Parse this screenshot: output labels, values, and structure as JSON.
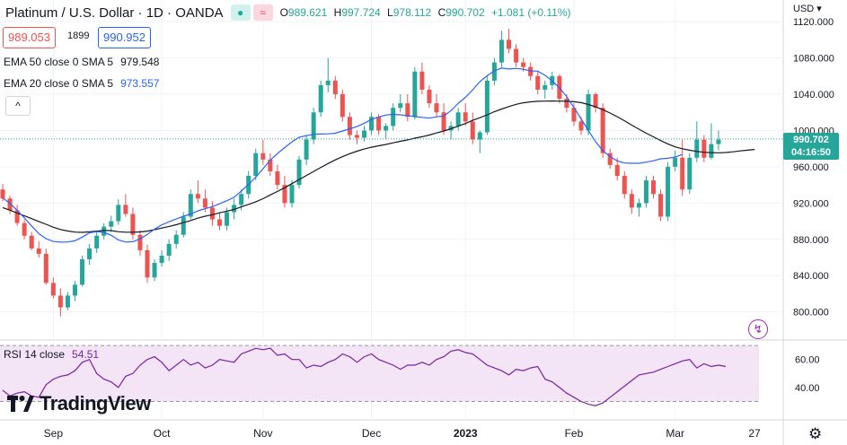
{
  "header": {
    "title": "Platinum / U.S. Dollar · 1D · OANDA",
    "ohlc": {
      "o_label": "O",
      "o": "989.621",
      "h_label": "H",
      "h": "997.724",
      "l_label": "L",
      "l": "978.112",
      "c_label": "C",
      "c": "990.702",
      "change": "+1.081 (+0.11%)"
    },
    "bid": "989.053",
    "spread": "1899",
    "ask": "990.952"
  },
  "indicators": {
    "ema50": {
      "label": "EMA 50 close 0 SMA 5",
      "value": "979.548"
    },
    "ema20": {
      "label": "EMA 20 close 0 SMA 5",
      "value": "973.557"
    },
    "collapse": "^"
  },
  "axis": {
    "currency": "USD",
    "last_price": "990.702",
    "countdown": "04:16:50",
    "price_ticks": [
      "1120.000",
      "1080.000",
      "1040.000",
      "1000.000",
      "960.000",
      "920.000",
      "880.000",
      "840.000",
      "800.000"
    ],
    "rsi_ticks": [
      "60.00",
      "40.00"
    ],
    "time_labels": [
      "Sep",
      "Oct",
      "Nov",
      "Dec",
      "2023",
      "Feb",
      "Mar",
      "27"
    ]
  },
  "rsi": {
    "label": "RSI 14 close",
    "value": "54.51"
  },
  "branding": "TradingView",
  "colors": {
    "up": "#26a69a",
    "down": "#ef5350",
    "ema20": "#2962ff",
    "ema50": "#131722",
    "rsi": "#7b1fa2",
    "rsi_band": "#f3e5f5"
  },
  "chart_data": {
    "type": "candlestick",
    "price_range": [
      770,
      1132
    ],
    "rsi_range": [
      22,
      72
    ],
    "rsi_bands": [
      70,
      30
    ],
    "series": [
      {
        "name": "EMA 50 close 0 SMA 5",
        "values": [
          915.0,
          912.1,
          909.0,
          905.9,
          902.8,
          899.7,
          896.6,
          893.3,
          890.9,
          889.2,
          888.0,
          887.7,
          888.3,
          889.1,
          889.9,
          889.7,
          888.4,
          887.9,
          887.9,
          888.2,
          889.1,
          890.7,
          892.4,
          894.2,
          896.1,
          898.5,
          900.8,
          903.4,
          905.5,
          907.2,
          909.3,
          911.1,
          913.0,
          915.8,
          918.6,
          921.4,
          924.8,
          928.9,
          932.8,
          937.0,
          941.4,
          946.0,
          950.4,
          954.9,
          959.3,
          963.6,
          967.6,
          971.2,
          974.4,
          977.2,
          979.6,
          981.6,
          983.1,
          984.6,
          986.4,
          988.1,
          989.7,
          991.6,
          993.1,
          995.0,
          997.3,
          999.5,
          1002.0,
          1004.8,
          1007.7,
          1011.2,
          1014.1,
          1017.3,
          1020.7,
          1023.7,
          1026.4,
          1028.8,
          1030.5,
          1031.6,
          1032.2,
          1032.4,
          1032.5,
          1032.4,
          1032.2,
          1031.7,
          1030.7,
          1028.6,
          1026.1,
          1022.9,
          1019.2,
          1015.2,
          1010.7,
          1005.9,
          1001.4,
          997.0,
          993.0,
          988.9,
          985.2,
          982.0,
          979.9,
          978.3,
          976.9,
          976.0,
          975.6,
          975.4,
          975.7,
          976.5,
          977.5,
          978.3,
          979.1
        ]
      },
      {
        "name": "EMA 20 close 0 SMA 5",
        "values": [
          925.6,
          919.7,
          912.0,
          903.6,
          894.8,
          886.2,
          880.8,
          877.6,
          876.9,
          877.1,
          878.4,
          882.5,
          887.2,
          888.6,
          887.8,
          884.5,
          879.4,
          877.0,
          877.4,
          880.5,
          885.4,
          891.3,
          896.0,
          899.4,
          902.4,
          905.5,
          908.0,
          911.4,
          913.8,
          916.1,
          919.3,
          922.6,
          926.4,
          933.3,
          940.6,
          948.6,
          957.8,
          967.4,
          974.5,
          981.3,
          987.5,
          992.5,
          994.3,
          995.8,
          996.1,
          996.3,
          997.0,
          999.5,
          1001.9,
          1004.3,
          1008.0,
          1012.2,
          1014.8,
          1017.1,
          1017.8,
          1017.3,
          1016.5,
          1015.3,
          1014.5,
          1013.6,
          1015.1,
          1016.0,
          1021.9,
          1030.0,
          1036.6,
          1045.0,
          1053.9,
          1060.4,
          1065.7,
          1068.9,
          1067.8,
          1068.5,
          1067.5,
          1065.7,
          1065.4,
          1060.9,
          1054.6,
          1047.1,
          1037.2,
          1025.4,
          1012.8,
          999.9,
          987.7,
          977.8,
          971.2,
          966.5,
          964.2,
          963.9,
          963.9,
          965.1,
          966.6,
          968.8,
          969.4,
          970.7,
          973.6
        ]
      },
      {
        "name": "RSI 14 close",
        "values": [
          38,
          34,
          36,
          37,
          34,
          33,
          42,
          46,
          48,
          49,
          52,
          58,
          60,
          50,
          46,
          44,
          40,
          48,
          50,
          56,
          60,
          62,
          58,
          52,
          56,
          60,
          56,
          58,
          54,
          56,
          60,
          59,
          58,
          64,
          66,
          68,
          67,
          68,
          63,
          64,
          60,
          60,
          54,
          56,
          55,
          58,
          60,
          64,
          62,
          58,
          62,
          64,
          60,
          58,
          56,
          53,
          56,
          56,
          58,
          56,
          60,
          62,
          66,
          67,
          65,
          64,
          60,
          56,
          54,
          52,
          49,
          53,
          52,
          54,
          55,
          46,
          44,
          40,
          36,
          33,
          30,
          28,
          27,
          29,
          33,
          37,
          41,
          45,
          49,
          50,
          51,
          53,
          55,
          57,
          59,
          60,
          54,
          57,
          55,
          56,
          55
        ]
      }
    ],
    "ohlc": [
      [
        935,
        941,
        922,
        925
      ],
      [
        925,
        928,
        908,
        912
      ],
      [
        912,
        918,
        895,
        898
      ],
      [
        898,
        902,
        880,
        884
      ],
      [
        884,
        888,
        868,
        870
      ],
      [
        870,
        878,
        860,
        864
      ],
      [
        864,
        870,
        830,
        832
      ],
      [
        832,
        838,
        815,
        818
      ],
      [
        818,
        826,
        795,
        805
      ],
      [
        805,
        822,
        802,
        818
      ],
      [
        818,
        834,
        812,
        830
      ],
      [
        830,
        862,
        828,
        858
      ],
      [
        858,
        875,
        852,
        870
      ],
      [
        870,
        888,
        865,
        884
      ],
      [
        884,
        898,
        880,
        894
      ],
      [
        894,
        906,
        888,
        900
      ],
      [
        900,
        924,
        896,
        918
      ],
      [
        918,
        930,
        905,
        908
      ],
      [
        908,
        915,
        880,
        885
      ],
      [
        885,
        890,
        862,
        868
      ],
      [
        868,
        874,
        832,
        838
      ],
      [
        838,
        858,
        834,
        854
      ],
      [
        854,
        868,
        850,
        862
      ],
      [
        862,
        880,
        856,
        875
      ],
      [
        875,
        890,
        870,
        885
      ],
      [
        885,
        910,
        882,
        905
      ],
      [
        905,
        935,
        902,
        930
      ],
      [
        930,
        945,
        920,
        925
      ],
      [
        925,
        935,
        910,
        915
      ],
      [
        915,
        922,
        895,
        902
      ],
      [
        902,
        910,
        890,
        895
      ],
      [
        895,
        915,
        890,
        910
      ],
      [
        910,
        925,
        902,
        918
      ],
      [
        918,
        935,
        912,
        930
      ],
      [
        930,
        955,
        925,
        950
      ],
      [
        950,
        980,
        945,
        975
      ],
      [
        975,
        990,
        962,
        968
      ],
      [
        968,
        975,
        950,
        955
      ],
      [
        955,
        962,
        935,
        940
      ],
      [
        940,
        950,
        915,
        920
      ],
      [
        920,
        945,
        915,
        940
      ],
      [
        940,
        972,
        936,
        968
      ],
      [
        968,
        995,
        962,
        990
      ],
      [
        990,
        1025,
        985,
        1020
      ],
      [
        1020,
        1055,
        1015,
        1050
      ],
      [
        1050,
        1080,
        1042,
        1055
      ],
      [
        1055,
        1060,
        1035,
        1040
      ],
      [
        1040,
        1045,
        1010,
        1015
      ],
      [
        1015,
        1020,
        990,
        995
      ],
      [
        995,
        1000,
        985,
        992
      ],
      [
        992,
        1005,
        988,
        1000
      ],
      [
        1000,
        1020,
        995,
        1015
      ],
      [
        1015,
        1018,
        995,
        1000
      ],
      [
        1000,
        1008,
        990,
        1005
      ],
      [
        1005,
        1030,
        1000,
        1025
      ],
      [
        1025,
        1040,
        1020,
        1030
      ],
      [
        1030,
        1040,
        1010,
        1015
      ],
      [
        1015,
        1070,
        1012,
        1065
      ],
      [
        1065,
        1075,
        1040,
        1045
      ],
      [
        1045,
        1050,
        1025,
        1030
      ],
      [
        1030,
        1040,
        1015,
        1020
      ],
      [
        1020,
        1030,
        995,
        1000
      ],
      [
        1000,
        1010,
        990,
        1005
      ],
      [
        1005,
        1025,
        1000,
        1020
      ],
      [
        1020,
        1030,
        1005,
        1010
      ],
      [
        1010,
        1020,
        985,
        990
      ],
      [
        990,
        1000,
        975,
        998
      ],
      [
        998,
        1060,
        995,
        1055
      ],
      [
        1055,
        1080,
        1050,
        1075
      ],
      [
        1075,
        1110,
        1070,
        1100
      ],
      [
        1100,
        1112,
        1085,
        1090
      ],
      [
        1090,
        1095,
        1070,
        1075
      ],
      [
        1075,
        1080,
        1065,
        1070
      ],
      [
        1070,
        1075,
        1055,
        1060
      ],
      [
        1060,
        1065,
        1040,
        1045
      ],
      [
        1045,
        1055,
        1035,
        1050
      ],
      [
        1050,
        1065,
        1045,
        1060
      ],
      [
        1060,
        1062,
        1030,
        1035
      ],
      [
        1035,
        1040,
        1020,
        1025
      ],
      [
        1025,
        1030,
        1005,
        1010
      ],
      [
        1010,
        1015,
        995,
        1000
      ],
      [
        1000,
        1045,
        995,
        1040
      ],
      [
        1040,
        1042,
        1020,
        1025
      ],
      [
        1025,
        1030,
        970,
        975
      ],
      [
        975,
        980,
        958,
        962
      ],
      [
        962,
        970,
        945,
        950
      ],
      [
        950,
        955,
        925,
        930
      ],
      [
        930,
        935,
        908,
        915
      ],
      [
        915,
        925,
        905,
        920
      ],
      [
        920,
        950,
        915,
        945
      ],
      [
        945,
        950,
        925,
        930
      ],
      [
        930,
        935,
        900,
        905
      ],
      [
        905,
        965,
        900,
        960
      ],
      [
        960,
        978,
        955,
        970
      ],
      [
        970,
        990,
        928,
        935
      ],
      [
        935,
        975,
        930,
        970
      ],
      [
        970,
        1010,
        965,
        990
      ],
      [
        990,
        995,
        965,
        970
      ],
      [
        970,
        1008,
        968,
        985
      ],
      [
        985,
        1000,
        978,
        990
      ]
    ]
  }
}
